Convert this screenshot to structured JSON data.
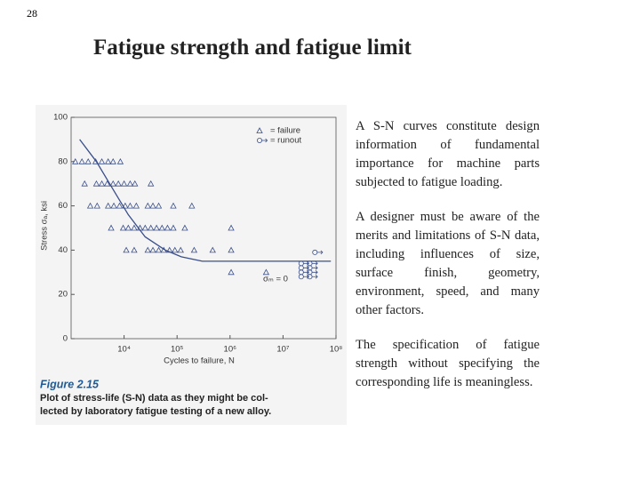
{
  "page_number": "28",
  "title": "Fatigue strength and fatigue limit",
  "chart_data": {
    "type": "scatter",
    "xlabel": "Cycles to failure, N",
    "ylabel": "Stress σₐ, ksi",
    "xlim": [
      1000,
      100000000
    ],
    "xlog": true,
    "xticks": [
      {
        "value": 10000,
        "label": "10⁴"
      },
      {
        "value": 100000,
        "label": "10⁵"
      },
      {
        "value": 1000000,
        "label": "10⁶"
      },
      {
        "value": 10000000,
        "label": "10⁷"
      },
      {
        "value": 100000000,
        "label": "10⁸"
      }
    ],
    "ylim": [
      0,
      100
    ],
    "yticks": [
      0,
      20,
      40,
      60,
      80,
      100
    ],
    "annotation": "σₘ = 0",
    "series": [
      {
        "name": "= failure",
        "marker": "triangle",
        "color": "#3a4f8a",
        "x": [
          1200,
          1600,
          2100,
          2900,
          3800,
          5000,
          6200,
          8500,
          1800,
          3000,
          3800,
          4800,
          6200,
          7800,
          10000,
          13000,
          16000,
          32000,
          2300,
          3100,
          5000,
          6400,
          8200,
          10500,
          13000,
          17000,
          28000,
          35000,
          45000,
          85000,
          190000,
          5700,
          9600,
          12000,
          15500,
          20000,
          25000,
          32000,
          41000,
          52000,
          66000,
          85000,
          140000,
          1050000,
          11000,
          15500,
          28000,
          35000,
          45000,
          56000,
          72000,
          91000,
          117000,
          210000,
          470000,
          1050000,
          1050000,
          4800000
        ],
        "values": [
          80,
          80,
          80,
          80,
          80,
          80,
          80,
          80,
          70,
          70,
          70,
          70,
          70,
          70,
          70,
          70,
          70,
          70,
          60,
          60,
          60,
          60,
          60,
          60,
          60,
          60,
          60,
          60,
          60,
          60,
          60,
          50,
          50,
          50,
          50,
          50,
          50,
          50,
          50,
          50,
          50,
          50,
          50,
          50,
          40,
          40,
          40,
          40,
          40,
          40,
          40,
          40,
          40,
          40,
          40,
          40,
          30,
          30
        ]
      },
      {
        "name": "= runout",
        "marker": "circle",
        "color": "#3a4f8a",
        "x": [
          40000000,
          22000000,
          32000000,
          22000000,
          32000000,
          22000000,
          32000000,
          22000000,
          32000000
        ],
        "values": [
          39,
          34,
          34,
          32,
          32,
          30,
          30,
          28,
          28
        ]
      }
    ],
    "fit": {
      "color": "#3a4f8a",
      "x": [
        1450,
        3000,
        6000,
        12000,
        25000,
        60000,
        120000,
        300000,
        1000000,
        80000000
      ],
      "values": [
        90,
        80,
        68,
        56,
        46,
        40,
        37,
        35,
        35,
        35
      ]
    }
  },
  "caption": {
    "label": "Figure 2.15",
    "lines": [
      "Plot of stress-life (S-N) data as they might be col-",
      "lected by laboratory fatigue testing of a new alloy."
    ]
  },
  "paragraphs": [
    "A S-N curves constitute design information of fundamental importance for machine parts subjected to fatigue loading.",
    "A designer must be aware of the merits and limitations of S-N data, including influences of size, surface finish, geometry, environment, speed, and many other factors.",
    "The specification of fatigue strength without specifying the corresponding life is meaningless."
  ]
}
